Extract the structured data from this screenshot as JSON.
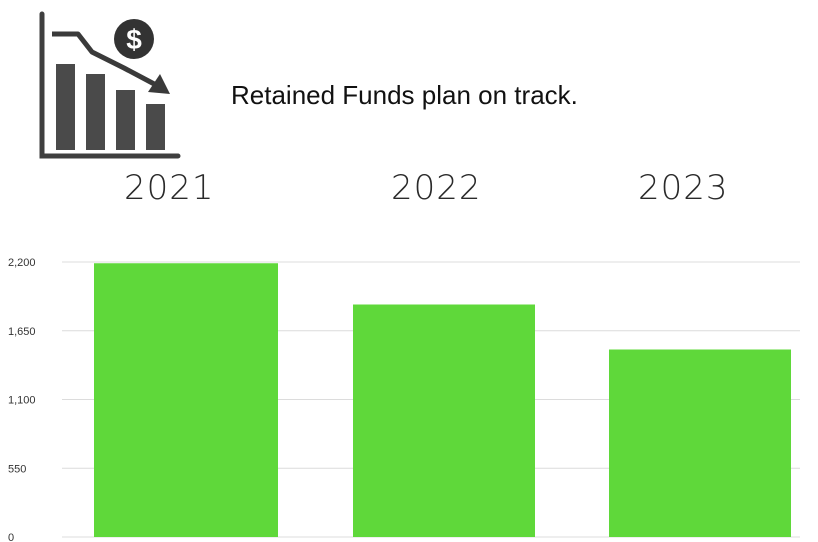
{
  "headline": "Retained Funds plan on track.",
  "logo": {
    "icon": "declining-revenue-chart-icon",
    "dollar_symbol": "$"
  },
  "chart_data": {
    "type": "bar",
    "categories": [
      "2021",
      "2022",
      "2023"
    ],
    "values": [
      2190,
      1860,
      1500
    ],
    "title": "",
    "xlabel": "",
    "ylabel": "",
    "ylim": [
      0,
      2200
    ],
    "yticks": [
      0,
      550,
      1100,
      1650,
      2200
    ],
    "ytick_labels": [
      "0",
      "550",
      "1,100",
      "1,650",
      "2,200"
    ],
    "grid": true,
    "bar_color": "#5fd83a",
    "grid_color": "#dcdcdc"
  }
}
